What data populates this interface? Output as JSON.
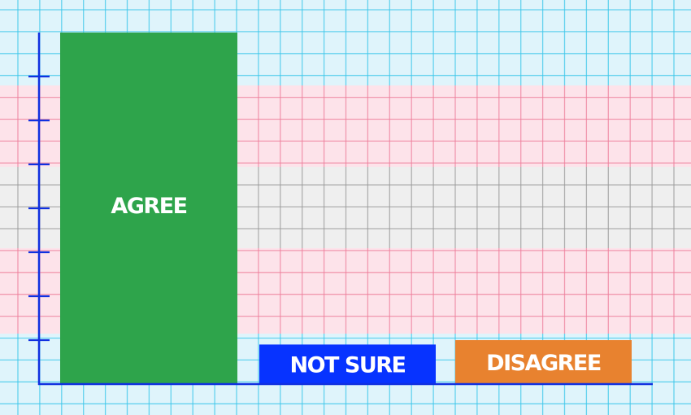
{
  "colors": {
    "flag_blue": "#dff4fb",
    "flag_pink": "#fde3ea",
    "flag_white": "#efefef",
    "grid_blue": "#3cc7ea",
    "grid_pink": "#ee7f9c",
    "grid_gray": "#9a9a9a",
    "axis": "#1030e0"
  },
  "chart_data": {
    "type": "bar",
    "categories": [
      "AGREE",
      "NOT SURE",
      "DISAGREE"
    ],
    "values": [
      8,
      0.9,
      1.0
    ],
    "colors": [
      "#2ea44b",
      "#0733ff",
      "#e8822f"
    ],
    "title": "",
    "xlabel": "",
    "ylabel": "",
    "ylim": [
      0,
      8
    ],
    "yticks": [
      1,
      2,
      3,
      4,
      5,
      6,
      7
    ],
    "ytick_labels_shown": false,
    "grid": false,
    "legend": "none",
    "labels_inside_bars": true
  }
}
